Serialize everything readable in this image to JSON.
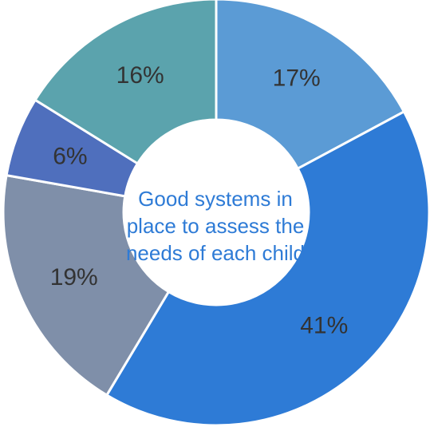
{
  "chart_data": {
    "type": "pie",
    "donut": true,
    "center_text": "Good systems in place to assess the needs of each child",
    "slices": [
      {
        "value": 17,
        "label": "17%",
        "color": "#5b9bd5"
      },
      {
        "value": 41,
        "label": "41%",
        "color": "#2e7bd6"
      },
      {
        "value": 19,
        "label": "19%",
        "color": "#7f8fa9"
      },
      {
        "value": 6,
        "label": "6%",
        "color": "#4f6fbd"
      },
      {
        "value": 16,
        "label": "16%",
        "color": "#5ba3ad"
      }
    ],
    "start_angle": "12 o'clock",
    "direction": "clockwise",
    "separator_color": "#ffffff",
    "legend": "none"
  }
}
